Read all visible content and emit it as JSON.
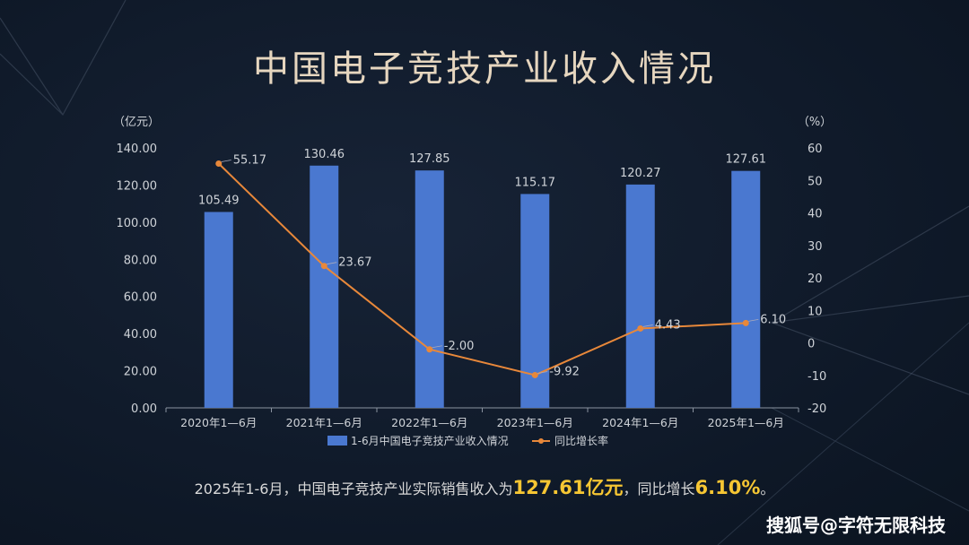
{
  "title": "中国电子竞技产业收入情况",
  "chart_data": {
    "type": "bar+line",
    "categories": [
      "2020年1—6月",
      "2021年1—6月",
      "2022年1—6月",
      "2023年1—6月",
      "2024年1—6月",
      "2025年1—6月"
    ],
    "series": [
      {
        "name": "1-6月中国电子竞技产业收入情况",
        "type": "bar",
        "axis": "left",
        "values": [
          105.49,
          130.46,
          127.85,
          115.17,
          120.27,
          127.61
        ],
        "labels": [
          "105.49",
          "130.46",
          "127.85",
          "115.17",
          "120.27",
          "127.61"
        ],
        "color": "#4a78d0"
      },
      {
        "name": "同比增长率",
        "type": "line",
        "axis": "right",
        "values": [
          55.17,
          23.67,
          -2.0,
          -9.92,
          4.43,
          6.1
        ],
        "labels": [
          "55.17",
          "23.67",
          "-2.00",
          "-9.92",
          "4.43",
          "6.10"
        ],
        "color": "#e8883a"
      }
    ],
    "left_axis": {
      "unit_label": "（亿元）",
      "ylim": [
        0,
        140
      ],
      "ticks": [
        "0.00",
        "20.00",
        "40.00",
        "60.00",
        "80.00",
        "100.00",
        "120.00",
        "140.00"
      ]
    },
    "right_axis": {
      "unit_label": "（%）",
      "ylim": [
        -20,
        60
      ],
      "ticks": [
        "-20",
        "-10",
        "0",
        "10",
        "20",
        "30",
        "40",
        "50",
        "60"
      ]
    },
    "legend_position": "bottom"
  },
  "summary": {
    "prefix": "2025年1-6月，中国电子竞技产业实际销售收入为",
    "value1": "127.61亿元",
    "mid": "，同比增长",
    "value2": "6.10%",
    "suffix": "。"
  },
  "watermark": "搜狐号@字符无限科技"
}
